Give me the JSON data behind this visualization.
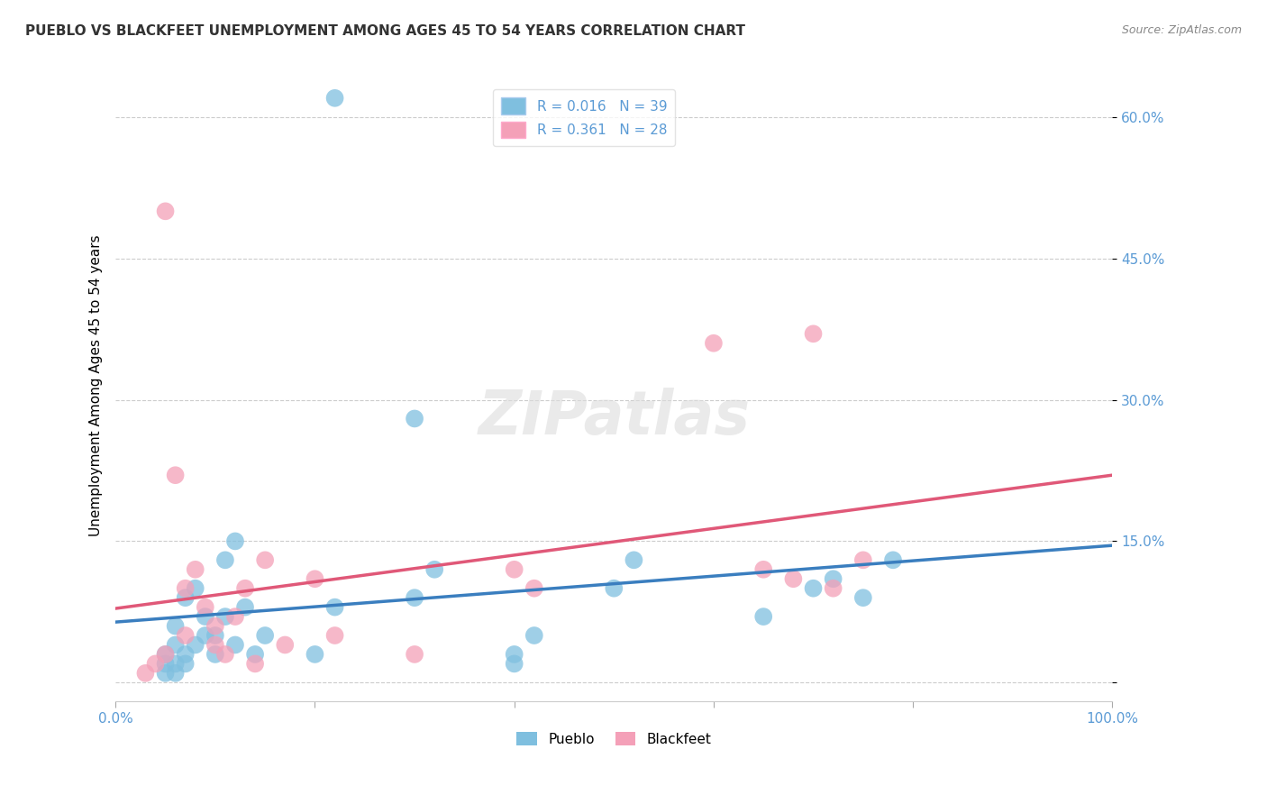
{
  "title": "PUEBLO VS BLACKFEET UNEMPLOYMENT AMONG AGES 45 TO 54 YEARS CORRELATION CHART",
  "source": "Source: ZipAtlas.com",
  "ylabel": "Unemployment Among Ages 45 to 54 years",
  "pueblo_color": "#7fbfdf",
  "blackfeet_color": "#f4a0b8",
  "pueblo_line_color": "#3a7ebf",
  "blackfeet_line_color": "#e05878",
  "legend_R_pueblo": "R = 0.016",
  "legend_N_pueblo": "N = 39",
  "legend_R_blackfeet": "R = 0.361",
  "legend_N_blackfeet": "N = 28",
  "tick_color": "#5b9bd5",
  "pueblo_x": [
    5,
    5,
    5,
    6,
    6,
    6,
    6,
    7,
    7,
    7,
    8,
    8,
    9,
    9,
    10,
    10,
    11,
    11,
    12,
    12,
    13,
    14,
    15,
    20,
    22,
    22,
    30,
    30,
    32,
    40,
    40,
    42,
    50,
    52,
    65,
    70,
    72,
    75,
    78
  ],
  "pueblo_y": [
    1,
    2,
    3,
    1,
    2,
    4,
    6,
    2,
    9,
    3,
    4,
    10,
    5,
    7,
    3,
    5,
    13,
    7,
    4,
    15,
    8,
    3,
    5,
    3,
    8,
    62,
    28,
    9,
    12,
    2,
    3,
    5,
    10,
    13,
    7,
    10,
    11,
    9,
    13
  ],
  "blackfeet_x": [
    3,
    4,
    5,
    5,
    6,
    7,
    7,
    8,
    9,
    10,
    10,
    11,
    12,
    13,
    14,
    15,
    17,
    20,
    22,
    30,
    40,
    42,
    60,
    65,
    68,
    70,
    72,
    75
  ],
  "blackfeet_y": [
    1,
    2,
    3,
    50,
    22,
    5,
    10,
    12,
    8,
    6,
    4,
    3,
    7,
    10,
    2,
    13,
    4,
    11,
    5,
    3,
    12,
    10,
    36,
    12,
    11,
    37,
    10,
    13
  ]
}
